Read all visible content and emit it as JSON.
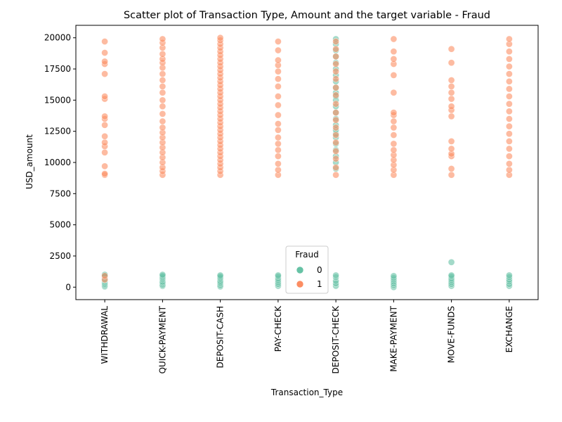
{
  "chart_data": {
    "type": "scatter",
    "title": "Scatter plot of Transaction Type, Amount and the target variable - Fraud",
    "xlabel": "Transaction_Type",
    "ylabel": "USD_amount",
    "categories": [
      "WITHDRAWAL",
      "QUICK-PAYMENT",
      "DEPOSIT-CASH",
      "PAY-CHECK",
      "DEPOSIT-CHECK",
      "MAKE-PAYMENT",
      "MOVE-FUNDS",
      "EXCHANGE"
    ],
    "ylim": [
      -1000,
      21000
    ],
    "yticks": [
      0,
      2500,
      5000,
      7500,
      10000,
      12500,
      15000,
      17500,
      20000
    ],
    "grid": false,
    "legend": {
      "title": "Fraud",
      "placement": "lower-center",
      "entries": [
        {
          "label": "0",
          "color": "#66c2a5"
        },
        {
          "label": "1",
          "color": "#fc8d62"
        }
      ]
    },
    "series": [
      {
        "name": "0",
        "color": "#66c2a5",
        "points": [
          [
            "WITHDRAWAL",
            50
          ],
          [
            "WITHDRAWAL",
            150
          ],
          [
            "WITHDRAWAL",
            250
          ],
          [
            "WITHDRAWAL",
            350
          ],
          [
            "WITHDRAWAL",
            450
          ],
          [
            "WITHDRAWAL",
            550
          ],
          [
            "WITHDRAWAL",
            650
          ],
          [
            "WITHDRAWAL",
            750
          ],
          [
            "WITHDRAWAL",
            850
          ],
          [
            "WITHDRAWAL",
            950
          ],
          [
            "WITHDRAWAL",
            1000
          ],
          [
            "QUICK-PAYMENT",
            100
          ],
          [
            "QUICK-PAYMENT",
            200
          ],
          [
            "QUICK-PAYMENT",
            350
          ],
          [
            "QUICK-PAYMENT",
            450
          ],
          [
            "QUICK-PAYMENT",
            600
          ],
          [
            "QUICK-PAYMENT",
            700
          ],
          [
            "QUICK-PAYMENT",
            800
          ],
          [
            "QUICK-PAYMENT",
            900
          ],
          [
            "QUICK-PAYMENT",
            1000
          ],
          [
            "DEPOSIT-CASH",
            50
          ],
          [
            "DEPOSIT-CASH",
            150
          ],
          [
            "DEPOSIT-CASH",
            300
          ],
          [
            "DEPOSIT-CASH",
            400
          ],
          [
            "DEPOSIT-CASH",
            500
          ],
          [
            "DEPOSIT-CASH",
            650
          ],
          [
            "DEPOSIT-CASH",
            750
          ],
          [
            "DEPOSIT-CASH",
            850
          ],
          [
            "DEPOSIT-CASH",
            950
          ],
          [
            "PAY-CHECK",
            100
          ],
          [
            "PAY-CHECK",
            250
          ],
          [
            "PAY-CHECK",
            400
          ],
          [
            "PAY-CHECK",
            550
          ],
          [
            "PAY-CHECK",
            700
          ],
          [
            "PAY-CHECK",
            850
          ],
          [
            "PAY-CHECK",
            950
          ],
          [
            "DEPOSIT-CHECK",
            100
          ],
          [
            "DEPOSIT-CHECK",
            300
          ],
          [
            "DEPOSIT-CHECK",
            500
          ],
          [
            "DEPOSIT-CHECK",
            800
          ],
          [
            "DEPOSIT-CHECK",
            950
          ],
          [
            "DEPOSIT-CHECK",
            9500
          ],
          [
            "DEPOSIT-CHECK",
            10000
          ],
          [
            "DEPOSIT-CHECK",
            10500
          ],
          [
            "DEPOSIT-CHECK",
            11000
          ],
          [
            "DEPOSIT-CHECK",
            11500
          ],
          [
            "DEPOSIT-CHECK",
            12000
          ],
          [
            "DEPOSIT-CHECK",
            12300
          ],
          [
            "DEPOSIT-CHECK",
            12600
          ],
          [
            "DEPOSIT-CHECK",
            13000
          ],
          [
            "DEPOSIT-CHECK",
            13500
          ],
          [
            "DEPOSIT-CHECK",
            14000
          ],
          [
            "DEPOSIT-CHECK",
            14500
          ],
          [
            "DEPOSIT-CHECK",
            15000
          ],
          [
            "DEPOSIT-CHECK",
            15300
          ],
          [
            "DEPOSIT-CHECK",
            15600
          ],
          [
            "DEPOSIT-CHECK",
            16000
          ],
          [
            "DEPOSIT-CHECK",
            16500
          ],
          [
            "DEPOSIT-CHECK",
            17000
          ],
          [
            "DEPOSIT-CHECK",
            17500
          ],
          [
            "DEPOSIT-CHECK",
            18000
          ],
          [
            "DEPOSIT-CHECK",
            18500
          ],
          [
            "DEPOSIT-CHECK",
            19000
          ],
          [
            "DEPOSIT-CHECK",
            19500
          ],
          [
            "DEPOSIT-CHECK",
            19900
          ],
          [
            "MAKE-PAYMENT",
            0
          ],
          [
            "MAKE-PAYMENT",
            150
          ],
          [
            "MAKE-PAYMENT",
            300
          ],
          [
            "MAKE-PAYMENT",
            450
          ],
          [
            "MAKE-PAYMENT",
            600
          ],
          [
            "MAKE-PAYMENT",
            750
          ],
          [
            "MAKE-PAYMENT",
            900
          ],
          [
            "MOVE-FUNDS",
            100
          ],
          [
            "MOVE-FUNDS",
            250
          ],
          [
            "MOVE-FUNDS",
            400
          ],
          [
            "MOVE-FUNDS",
            550
          ],
          [
            "MOVE-FUNDS",
            700
          ],
          [
            "MOVE-FUNDS",
            850
          ],
          [
            "MOVE-FUNDS",
            950
          ],
          [
            "MOVE-FUNDS",
            2000
          ],
          [
            "EXCHANGE",
            100
          ],
          [
            "EXCHANGE",
            250
          ],
          [
            "EXCHANGE",
            450
          ],
          [
            "EXCHANGE",
            600
          ],
          [
            "EXCHANGE",
            800
          ],
          [
            "EXCHANGE",
            950
          ]
        ]
      },
      {
        "name": "1",
        "color": "#fc8d62",
        "points": [
          [
            "WITHDRAWAL",
            600
          ],
          [
            "WITHDRAWAL",
            900
          ],
          [
            "WITHDRAWAL",
            9000
          ],
          [
            "WITHDRAWAL",
            9100
          ],
          [
            "WITHDRAWAL",
            9700
          ],
          [
            "WITHDRAWAL",
            10800
          ],
          [
            "WITHDRAWAL",
            11300
          ],
          [
            "WITHDRAWAL",
            11600
          ],
          [
            "WITHDRAWAL",
            12100
          ],
          [
            "WITHDRAWAL",
            13000
          ],
          [
            "WITHDRAWAL",
            13500
          ],
          [
            "WITHDRAWAL",
            13700
          ],
          [
            "WITHDRAWAL",
            15100
          ],
          [
            "WITHDRAWAL",
            15300
          ],
          [
            "WITHDRAWAL",
            17100
          ],
          [
            "WITHDRAWAL",
            17900
          ],
          [
            "WITHDRAWAL",
            18100
          ],
          [
            "WITHDRAWAL",
            18800
          ],
          [
            "WITHDRAWAL",
            19700
          ],
          [
            "QUICK-PAYMENT",
            9000
          ],
          [
            "QUICK-PAYMENT",
            9300
          ],
          [
            "QUICK-PAYMENT",
            9600
          ],
          [
            "QUICK-PAYMENT",
            10000
          ],
          [
            "QUICK-PAYMENT",
            10400
          ],
          [
            "QUICK-PAYMENT",
            10800
          ],
          [
            "QUICK-PAYMENT",
            11200
          ],
          [
            "QUICK-PAYMENT",
            11600
          ],
          [
            "QUICK-PAYMENT",
            12000
          ],
          [
            "QUICK-PAYMENT",
            12400
          ],
          [
            "QUICK-PAYMENT",
            12800
          ],
          [
            "QUICK-PAYMENT",
            13300
          ],
          [
            "QUICK-PAYMENT",
            13900
          ],
          [
            "QUICK-PAYMENT",
            14500
          ],
          [
            "QUICK-PAYMENT",
            15000
          ],
          [
            "QUICK-PAYMENT",
            15600
          ],
          [
            "QUICK-PAYMENT",
            16100
          ],
          [
            "QUICK-PAYMENT",
            16600
          ],
          [
            "QUICK-PAYMENT",
            17100
          ],
          [
            "QUICK-PAYMENT",
            17600
          ],
          [
            "QUICK-PAYMENT",
            18000
          ],
          [
            "QUICK-PAYMENT",
            18300
          ],
          [
            "QUICK-PAYMENT",
            18700
          ],
          [
            "QUICK-PAYMENT",
            19200
          ],
          [
            "QUICK-PAYMENT",
            19600
          ],
          [
            "QUICK-PAYMENT",
            19900
          ],
          [
            "DEPOSIT-CASH",
            9000
          ],
          [
            "DEPOSIT-CASH",
            9300
          ],
          [
            "DEPOSIT-CASH",
            9600
          ],
          [
            "DEPOSIT-CASH",
            9900
          ],
          [
            "DEPOSIT-CASH",
            10200
          ],
          [
            "DEPOSIT-CASH",
            10500
          ],
          [
            "DEPOSIT-CASH",
            10800
          ],
          [
            "DEPOSIT-CASH",
            11100
          ],
          [
            "DEPOSIT-CASH",
            11400
          ],
          [
            "DEPOSIT-CASH",
            11700
          ],
          [
            "DEPOSIT-CASH",
            12000
          ],
          [
            "DEPOSIT-CASH",
            12300
          ],
          [
            "DEPOSIT-CASH",
            12600
          ],
          [
            "DEPOSIT-CASH",
            12900
          ],
          [
            "DEPOSIT-CASH",
            13200
          ],
          [
            "DEPOSIT-CASH",
            13500
          ],
          [
            "DEPOSIT-CASH",
            13800
          ],
          [
            "DEPOSIT-CASH",
            14100
          ],
          [
            "DEPOSIT-CASH",
            14400
          ],
          [
            "DEPOSIT-CASH",
            14700
          ],
          [
            "DEPOSIT-CASH",
            15000
          ],
          [
            "DEPOSIT-CASH",
            15300
          ],
          [
            "DEPOSIT-CASH",
            15600
          ],
          [
            "DEPOSIT-CASH",
            15900
          ],
          [
            "DEPOSIT-CASH",
            16200
          ],
          [
            "DEPOSIT-CASH",
            16500
          ],
          [
            "DEPOSIT-CASH",
            16800
          ],
          [
            "DEPOSIT-CASH",
            17100
          ],
          [
            "DEPOSIT-CASH",
            17400
          ],
          [
            "DEPOSIT-CASH",
            17700
          ],
          [
            "DEPOSIT-CASH",
            18000
          ],
          [
            "DEPOSIT-CASH",
            18300
          ],
          [
            "DEPOSIT-CASH",
            18600
          ],
          [
            "DEPOSIT-CASH",
            18900
          ],
          [
            "DEPOSIT-CASH",
            19200
          ],
          [
            "DEPOSIT-CASH",
            19500
          ],
          [
            "DEPOSIT-CASH",
            19800
          ],
          [
            "DEPOSIT-CASH",
            20000
          ],
          [
            "PAY-CHECK",
            9000
          ],
          [
            "PAY-CHECK",
            9400
          ],
          [
            "PAY-CHECK",
            9900
          ],
          [
            "PAY-CHECK",
            10500
          ],
          [
            "PAY-CHECK",
            11000
          ],
          [
            "PAY-CHECK",
            11500
          ],
          [
            "PAY-CHECK",
            12000
          ],
          [
            "PAY-CHECK",
            12600
          ],
          [
            "PAY-CHECK",
            13100
          ],
          [
            "PAY-CHECK",
            13800
          ],
          [
            "PAY-CHECK",
            14600
          ],
          [
            "PAY-CHECK",
            15300
          ],
          [
            "PAY-CHECK",
            16100
          ],
          [
            "PAY-CHECK",
            16700
          ],
          [
            "PAY-CHECK",
            17300
          ],
          [
            "PAY-CHECK",
            17800
          ],
          [
            "PAY-CHECK",
            18200
          ],
          [
            "PAY-CHECK",
            19000
          ],
          [
            "PAY-CHECK",
            19700
          ],
          [
            "DEPOSIT-CHECK",
            9000
          ],
          [
            "DEPOSIT-CHECK",
            9600
          ],
          [
            "DEPOSIT-CHECK",
            10300
          ],
          [
            "DEPOSIT-CHECK",
            10900
          ],
          [
            "DEPOSIT-CHECK",
            11600
          ],
          [
            "DEPOSIT-CHECK",
            12200
          ],
          [
            "DEPOSIT-CHECK",
            12800
          ],
          [
            "DEPOSIT-CHECK",
            13400
          ],
          [
            "DEPOSIT-CHECK",
            14000
          ],
          [
            "DEPOSIT-CHECK",
            14700
          ],
          [
            "DEPOSIT-CHECK",
            15400
          ],
          [
            "DEPOSIT-CHECK",
            16000
          ],
          [
            "DEPOSIT-CHECK",
            16700
          ],
          [
            "DEPOSIT-CHECK",
            17300
          ],
          [
            "DEPOSIT-CHECK",
            17900
          ],
          [
            "DEPOSIT-CHECK",
            18500
          ],
          [
            "DEPOSIT-CHECK",
            19100
          ],
          [
            "DEPOSIT-CHECK",
            19700
          ],
          [
            "MAKE-PAYMENT",
            9000
          ],
          [
            "MAKE-PAYMENT",
            9400
          ],
          [
            "MAKE-PAYMENT",
            9800
          ],
          [
            "MAKE-PAYMENT",
            10200
          ],
          [
            "MAKE-PAYMENT",
            10600
          ],
          [
            "MAKE-PAYMENT",
            11000
          ],
          [
            "MAKE-PAYMENT",
            11500
          ],
          [
            "MAKE-PAYMENT",
            12200
          ],
          [
            "MAKE-PAYMENT",
            12800
          ],
          [
            "MAKE-PAYMENT",
            13300
          ],
          [
            "MAKE-PAYMENT",
            13800
          ],
          [
            "MAKE-PAYMENT",
            14000
          ],
          [
            "MAKE-PAYMENT",
            15600
          ],
          [
            "MAKE-PAYMENT",
            17000
          ],
          [
            "MAKE-PAYMENT",
            17900
          ],
          [
            "MAKE-PAYMENT",
            18300
          ],
          [
            "MAKE-PAYMENT",
            18900
          ],
          [
            "MAKE-PAYMENT",
            19900
          ],
          [
            "MOVE-FUNDS",
            9000
          ],
          [
            "MOVE-FUNDS",
            9500
          ],
          [
            "MOVE-FUNDS",
            10500
          ],
          [
            "MOVE-FUNDS",
            10700
          ],
          [
            "MOVE-FUNDS",
            11100
          ],
          [
            "MOVE-FUNDS",
            11700
          ],
          [
            "MOVE-FUNDS",
            13700
          ],
          [
            "MOVE-FUNDS",
            14200
          ],
          [
            "MOVE-FUNDS",
            14500
          ],
          [
            "MOVE-FUNDS",
            15100
          ],
          [
            "MOVE-FUNDS",
            15600
          ],
          [
            "MOVE-FUNDS",
            16100
          ],
          [
            "MOVE-FUNDS",
            16600
          ],
          [
            "MOVE-FUNDS",
            18000
          ],
          [
            "MOVE-FUNDS",
            19100
          ],
          [
            "EXCHANGE",
            9000
          ],
          [
            "EXCHANGE",
            9400
          ],
          [
            "EXCHANGE",
            9900
          ],
          [
            "EXCHANGE",
            10500
          ],
          [
            "EXCHANGE",
            11100
          ],
          [
            "EXCHANGE",
            11700
          ],
          [
            "EXCHANGE",
            12300
          ],
          [
            "EXCHANGE",
            12900
          ],
          [
            "EXCHANGE",
            13500
          ],
          [
            "EXCHANGE",
            14100
          ],
          [
            "EXCHANGE",
            14700
          ],
          [
            "EXCHANGE",
            15300
          ],
          [
            "EXCHANGE",
            15900
          ],
          [
            "EXCHANGE",
            16500
          ],
          [
            "EXCHANGE",
            17100
          ],
          [
            "EXCHANGE",
            17700
          ],
          [
            "EXCHANGE",
            18300
          ],
          [
            "EXCHANGE",
            18900
          ],
          [
            "EXCHANGE",
            19500
          ],
          [
            "EXCHANGE",
            19900
          ]
        ]
      }
    ]
  }
}
